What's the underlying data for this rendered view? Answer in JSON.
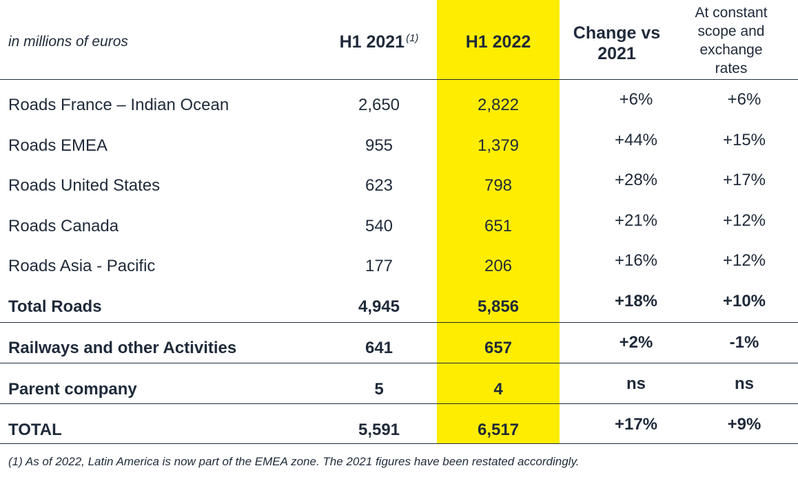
{
  "header": {
    "unit": "in millions of euros",
    "col_h1": "H1 2021",
    "col_h1_note": "(1)",
    "col_h2": "H1 2022",
    "col_change_line1": "Change vs",
    "col_change_line2": "2021",
    "col_constant_line1": "At constant",
    "col_constant_line2": "scope and",
    "col_constant_line3": "exchange",
    "col_constant_line4": "rates"
  },
  "rows": [
    {
      "label": "Roads France – Indian Ocean",
      "h1_2021": "2,650",
      "h1_2022": "2,822",
      "change": "+6%",
      "constant": "+6%"
    },
    {
      "label": "Roads EMEA",
      "h1_2021": "955",
      "h1_2022": "1,379",
      "change": "+44%",
      "constant": "+15%"
    },
    {
      "label": "Roads United States",
      "h1_2021": "623",
      "h1_2022": "798",
      "change": "+28%",
      "constant": "+17%"
    },
    {
      "label": "Roads Canada",
      "h1_2021": "540",
      "h1_2022": "651",
      "change": "+21%",
      "constant": "+12%"
    },
    {
      "label": "Roads Asia - Pacific",
      "h1_2021": "177",
      "h1_2022": "206",
      "change": "+16%",
      "constant": "+12%"
    },
    {
      "label": "Total Roads",
      "h1_2021": "4,945",
      "h1_2022": "5,856",
      "change": "+18%",
      "constant": "+10%"
    },
    {
      "label": "Railways and other Activities",
      "h1_2021": "641",
      "h1_2022": "657",
      "change": "+2%",
      "constant": "-1%"
    },
    {
      "label": "Parent company",
      "h1_2021": "5",
      "h1_2022": "4",
      "change": "ns",
      "constant": "ns"
    },
    {
      "label": "TOTAL",
      "h1_2021": "5,591",
      "h1_2022": "6,517",
      "change": "+17%",
      "constant": "+9%"
    }
  ],
  "footnote": "(1)    As of 2022, Latin America is now part of the EMEA zone. The 2021 figures have been restated accordingly.",
  "colors": {
    "highlight": "#ffed00",
    "text": "#1f2a3a"
  }
}
